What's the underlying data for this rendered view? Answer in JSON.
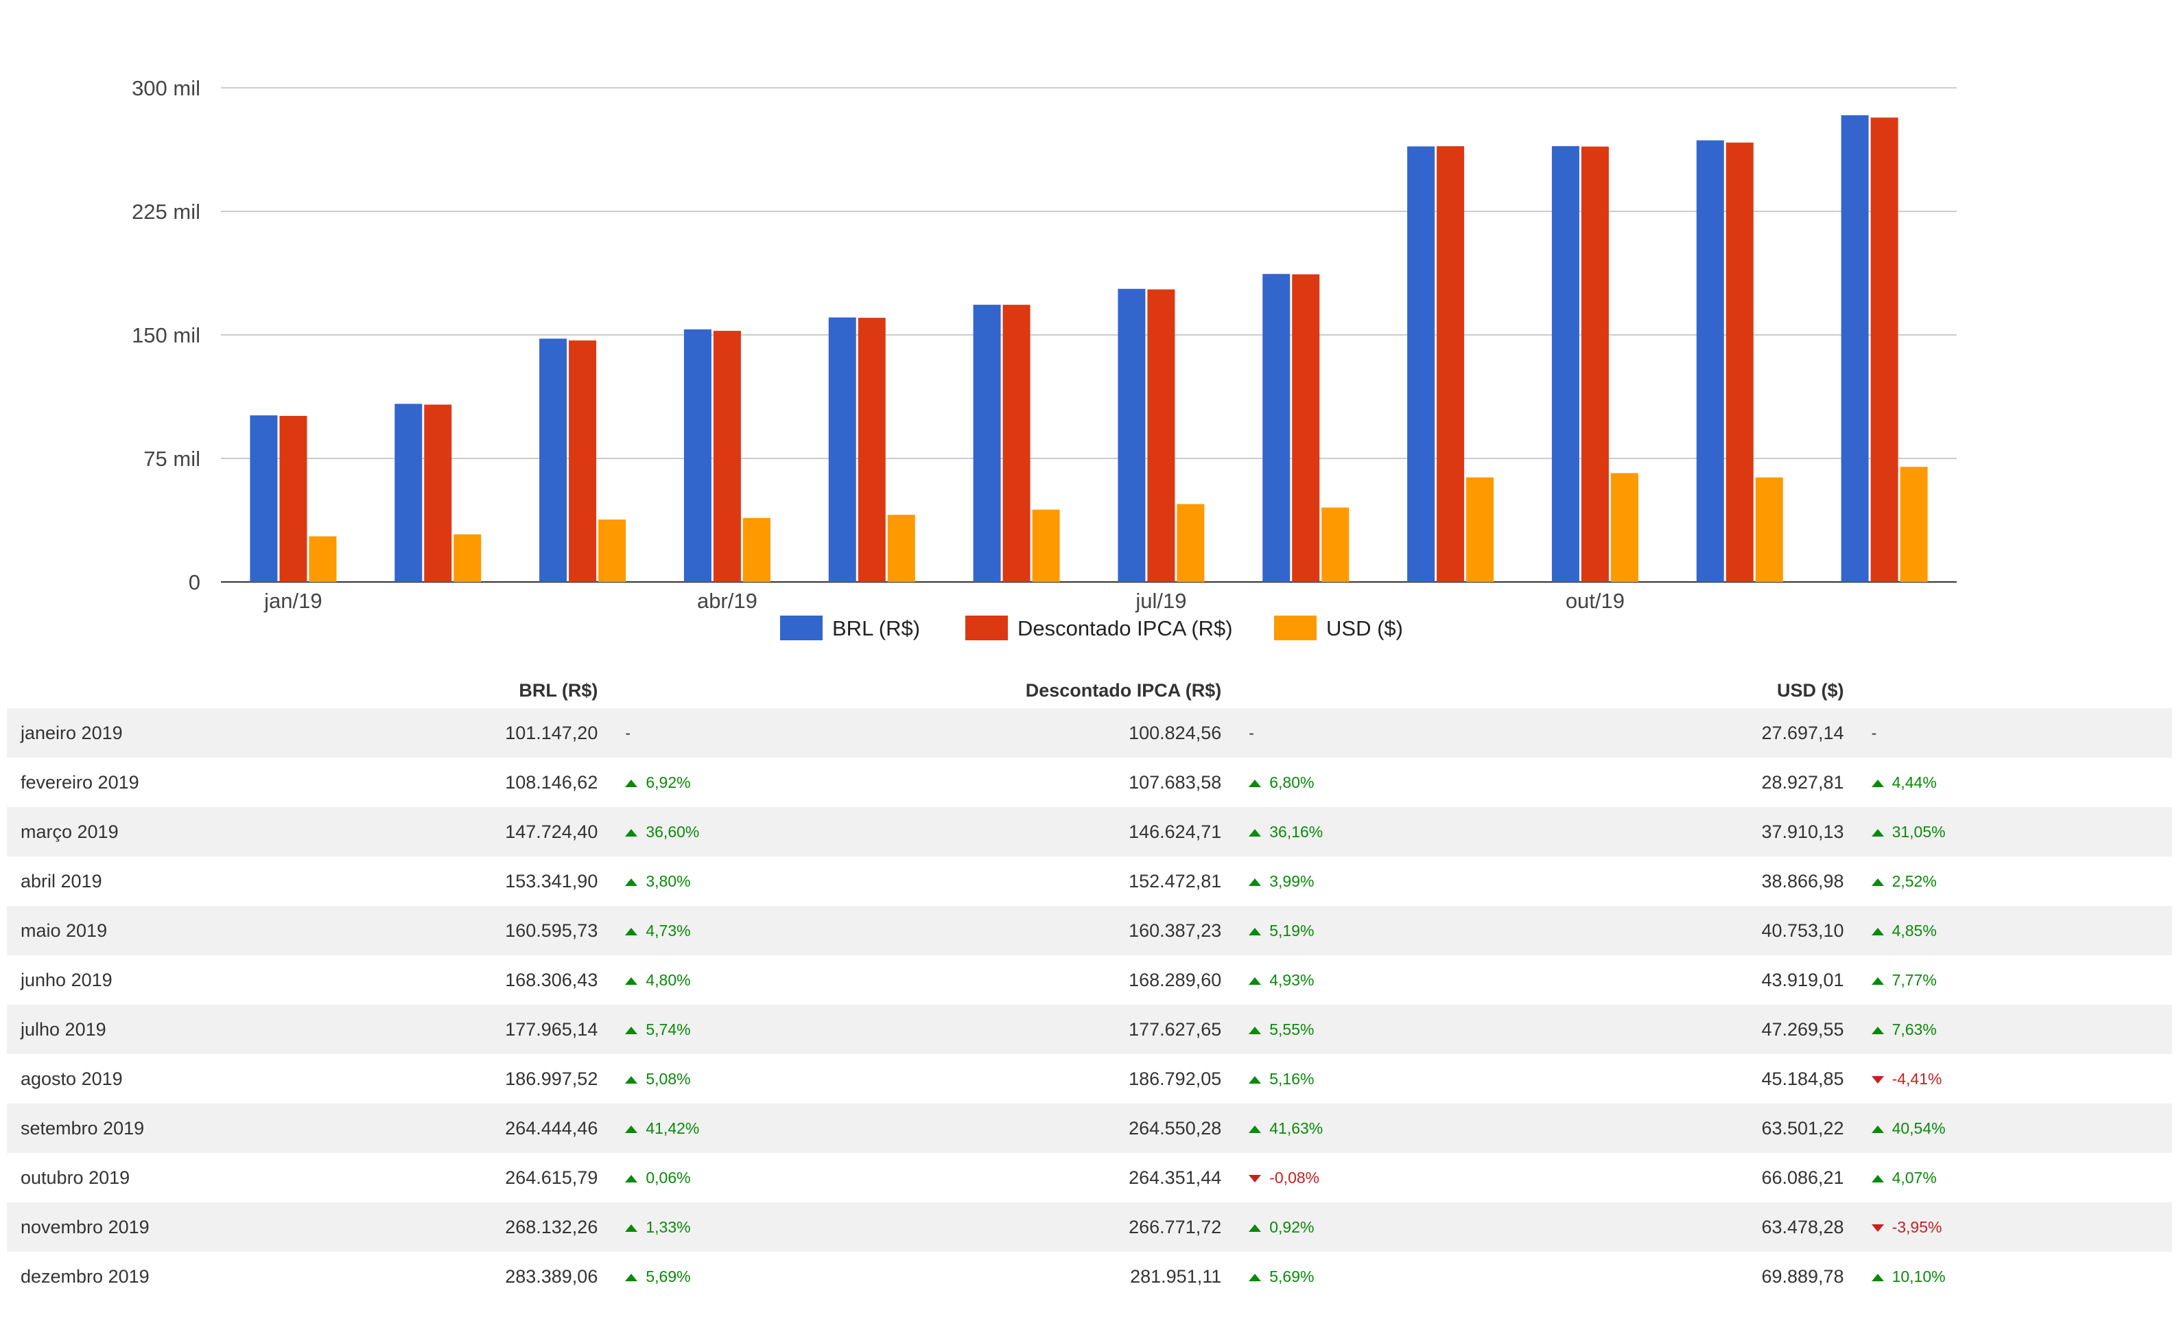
{
  "chart_data": {
    "type": "bar",
    "categories": [
      "janeiro 2019",
      "fevereiro 2019",
      "março 2019",
      "abril 2019",
      "maio 2019",
      "junho 2019",
      "julho 2019",
      "agosto 2019",
      "setembro 2019",
      "outubro 2019",
      "novembro 2019",
      "dezembro 2019"
    ],
    "x_tick_labels": [
      "jan/19",
      "abr/19",
      "jul/19",
      "out/19"
    ],
    "y_tick_labels": [
      "0",
      "75 mil",
      "150 mil",
      "225 mil",
      "300 mil"
    ],
    "y_ticks": [
      0,
      75000,
      150000,
      225000,
      300000
    ],
    "ylim": [
      0,
      300000
    ],
    "grid": true,
    "legend_position": "bottom",
    "series": [
      {
        "name": "BRL (R$)",
        "color": "#3366cc",
        "values": [
          101147.2,
          108146.62,
          147724.4,
          153341.9,
          160595.73,
          168306.43,
          177965.14,
          186997.52,
          264444.46,
          264615.79,
          268132.26,
          283389.06
        ]
      },
      {
        "name": "Descontado IPCA (R$)",
        "color": "#dc3912",
        "values": [
          100824.56,
          107683.58,
          146624.71,
          152472.81,
          160387.23,
          168289.6,
          177627.65,
          186792.05,
          264550.28,
          264351.44,
          266771.72,
          281951.11
        ]
      },
      {
        "name": "USD ($)",
        "color": "#ff9900",
        "values": [
          27697.14,
          28927.81,
          37910.13,
          38866.98,
          40753.1,
          43919.01,
          47269.55,
          45184.85,
          63501.22,
          66086.21,
          63478.28,
          69889.78
        ]
      }
    ]
  },
  "table": {
    "headers": {
      "brl": "BRL (R$)",
      "ipca": "Descontado IPCA (R$)",
      "usd": "USD ($)"
    },
    "rows": [
      {
        "month": "janeiro 2019",
        "brl": "101.147,20",
        "brl_chg": "-",
        "brl_dir": "none",
        "ipca": "100.824,56",
        "ipca_chg": "-",
        "ipca_dir": "none",
        "usd": "27.697,14",
        "usd_chg": "-",
        "usd_dir": "none"
      },
      {
        "month": "fevereiro 2019",
        "brl": "108.146,62",
        "brl_chg": "6,92%",
        "brl_dir": "up",
        "ipca": "107.683,58",
        "ipca_chg": "6,80%",
        "ipca_dir": "up",
        "usd": "28.927,81",
        "usd_chg": "4,44%",
        "usd_dir": "up"
      },
      {
        "month": "março 2019",
        "brl": "147.724,40",
        "brl_chg": "36,60%",
        "brl_dir": "up",
        "ipca": "146.624,71",
        "ipca_chg": "36,16%",
        "ipca_dir": "up",
        "usd": "37.910,13",
        "usd_chg": "31,05%",
        "usd_dir": "up"
      },
      {
        "month": "abril 2019",
        "brl": "153.341,90",
        "brl_chg": "3,80%",
        "brl_dir": "up",
        "ipca": "152.472,81",
        "ipca_chg": "3,99%",
        "ipca_dir": "up",
        "usd": "38.866,98",
        "usd_chg": "2,52%",
        "usd_dir": "up"
      },
      {
        "month": "maio 2019",
        "brl": "160.595,73",
        "brl_chg": "4,73%",
        "brl_dir": "up",
        "ipca": "160.387,23",
        "ipca_chg": "5,19%",
        "ipca_dir": "up",
        "usd": "40.753,10",
        "usd_chg": "4,85%",
        "usd_dir": "up"
      },
      {
        "month": "junho 2019",
        "brl": "168.306,43",
        "brl_chg": "4,80%",
        "brl_dir": "up",
        "ipca": "168.289,60",
        "ipca_chg": "4,93%",
        "ipca_dir": "up",
        "usd": "43.919,01",
        "usd_chg": "7,77%",
        "usd_dir": "up"
      },
      {
        "month": "julho 2019",
        "brl": "177.965,14",
        "brl_chg": "5,74%",
        "brl_dir": "up",
        "ipca": "177.627,65",
        "ipca_chg": "5,55%",
        "ipca_dir": "up",
        "usd": "47.269,55",
        "usd_chg": "7,63%",
        "usd_dir": "up"
      },
      {
        "month": "agosto 2019",
        "brl": "186.997,52",
        "brl_chg": "5,08%",
        "brl_dir": "up",
        "ipca": "186.792,05",
        "ipca_chg": "5,16%",
        "ipca_dir": "up",
        "usd": "45.184,85",
        "usd_chg": "-4,41%",
        "usd_dir": "down"
      },
      {
        "month": "setembro 2019",
        "brl": "264.444,46",
        "brl_chg": "41,42%",
        "brl_dir": "up",
        "ipca": "264.550,28",
        "ipca_chg": "41,63%",
        "ipca_dir": "up",
        "usd": "63.501,22",
        "usd_chg": "40,54%",
        "usd_dir": "up"
      },
      {
        "month": "outubro 2019",
        "brl": "264.615,79",
        "brl_chg": "0,06%",
        "brl_dir": "up",
        "ipca": "264.351,44",
        "ipca_chg": "-0,08%",
        "ipca_dir": "down",
        "usd": "66.086,21",
        "usd_chg": "4,07%",
        "usd_dir": "up"
      },
      {
        "month": "novembro 2019",
        "brl": "268.132,26",
        "brl_chg": "1,33%",
        "brl_dir": "up",
        "ipca": "266.771,72",
        "ipca_chg": "0,92%",
        "ipca_dir": "up",
        "usd": "63.478,28",
        "usd_chg": "-3,95%",
        "usd_dir": "down"
      },
      {
        "month": "dezembro 2019",
        "brl": "283.389,06",
        "brl_chg": "5,69%",
        "brl_dir": "up",
        "ipca": "281.951,11",
        "ipca_chg": "5,69%",
        "ipca_dir": "up",
        "usd": "69.889,78",
        "usd_chg": "10,10%",
        "usd_dir": "up"
      }
    ]
  }
}
